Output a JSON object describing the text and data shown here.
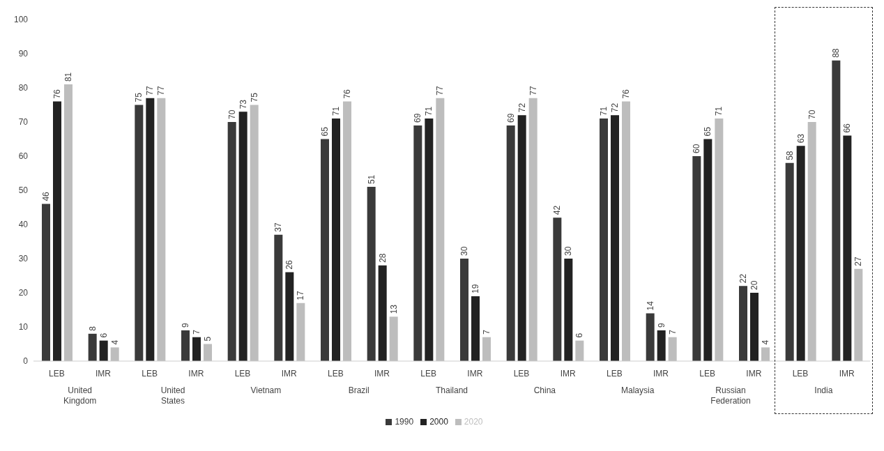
{
  "chart_data": {
    "type": "bar",
    "categories": [
      "LEB",
      "IMR",
      "LEB",
      "IMR",
      "LEB",
      "IMR",
      "LEB",
      "IMR",
      "LEB",
      "IMR",
      "LEB",
      "IMR",
      "LEB",
      "IMR",
      "LEB",
      "IMR",
      "LEB",
      "IMR"
    ],
    "series": [
      {
        "name": "1990",
        "color": "#3a3a3a",
        "values": [
          46,
          8,
          75,
          9,
          70,
          37,
          65,
          51,
          69,
          30,
          69,
          42,
          71,
          14,
          60,
          22,
          58,
          88
        ]
      },
      {
        "name": "2000",
        "color": "#222222",
        "values": [
          76,
          6,
          77,
          7,
          73,
          26,
          71,
          28,
          71,
          19,
          72,
          30,
          72,
          9,
          65,
          20,
          63,
          66
        ]
      },
      {
        "name": "2020",
        "color": "#bdbdbd",
        "values": [
          81,
          4,
          77,
          5,
          75,
          17,
          76,
          13,
          77,
          7,
          77,
          6,
          76,
          7,
          71,
          4,
          70,
          27
        ]
      }
    ],
    "annotations": [
      "United Kingdom",
      "United States",
      "Vietnam",
      "Brazil",
      "Thailand",
      "China",
      "Malaysia",
      "Russian Federation",
      "India"
    ],
    "ylim": [
      0,
      100
    ],
    "yticks": [
      0,
      10,
      20,
      30,
      40,
      50,
      60,
      70,
      80,
      90,
      100
    ],
    "grid": false,
    "legend": "bottom",
    "data_labels": true
  }
}
